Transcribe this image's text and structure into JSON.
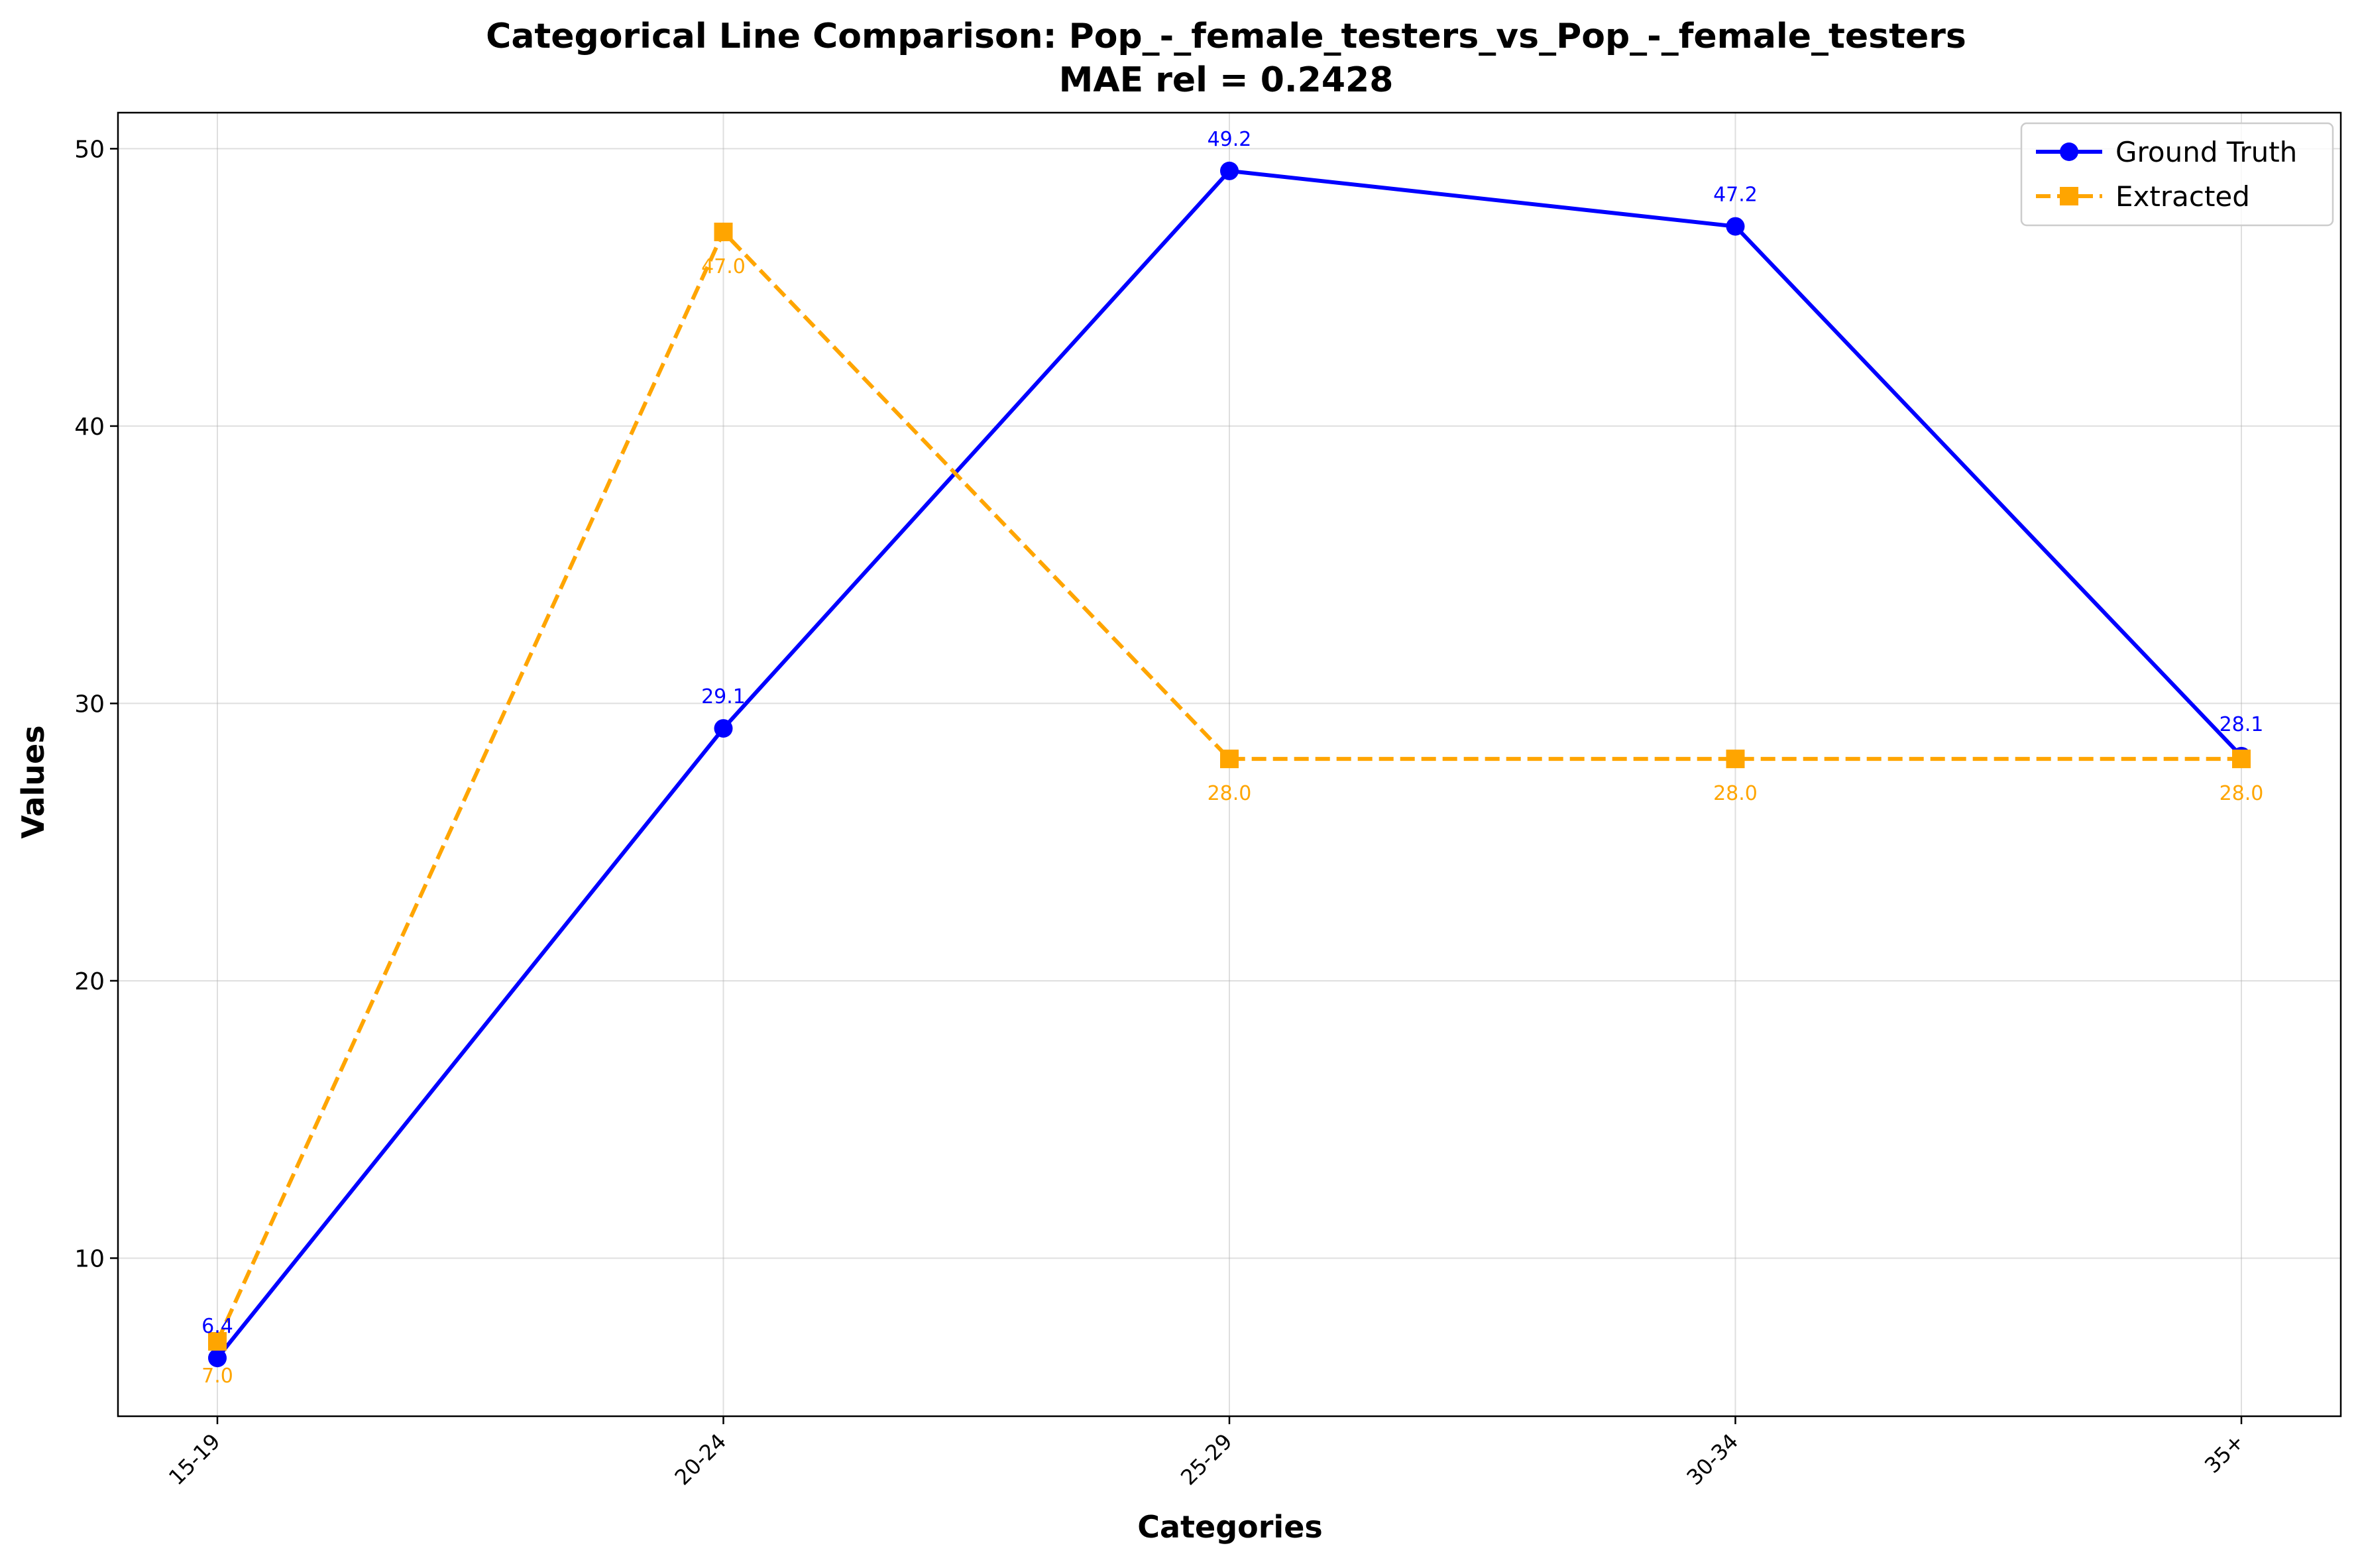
{
  "chart_data": {
    "type": "line",
    "title": "Categorical Line Comparison: Pop_-_female_testers_vs_Pop_-_female_testers",
    "subtitle": "MAE rel = 0.2428",
    "xlabel": "Categories",
    "ylabel": "Values",
    "categories": [
      "15-19",
      "20-24",
      "25-29",
      "30-34",
      "35+"
    ],
    "ylim": [
      4.3,
      51.3
    ],
    "yticks": [
      10,
      20,
      30,
      40,
      50
    ],
    "grid": true,
    "legend_position": "top-right",
    "series": [
      {
        "name": "Ground Truth",
        "values": [
          6.4,
          29.1,
          49.2,
          47.2,
          28.1
        ],
        "labels": [
          "6.4",
          "29.1",
          "49.2",
          "47.2",
          "28.1"
        ],
        "color": "#0000ff",
        "line_style": "solid",
        "marker": "circle",
        "label_position": "above"
      },
      {
        "name": "Extracted",
        "values": [
          7.0,
          47.0,
          28.0,
          28.0,
          28.0
        ],
        "labels": [
          "7.0",
          "47.0",
          "28.0",
          "28.0",
          "28.0"
        ],
        "color": "#ffa500",
        "line_style": "dashed",
        "marker": "square",
        "label_position": "below"
      }
    ]
  }
}
